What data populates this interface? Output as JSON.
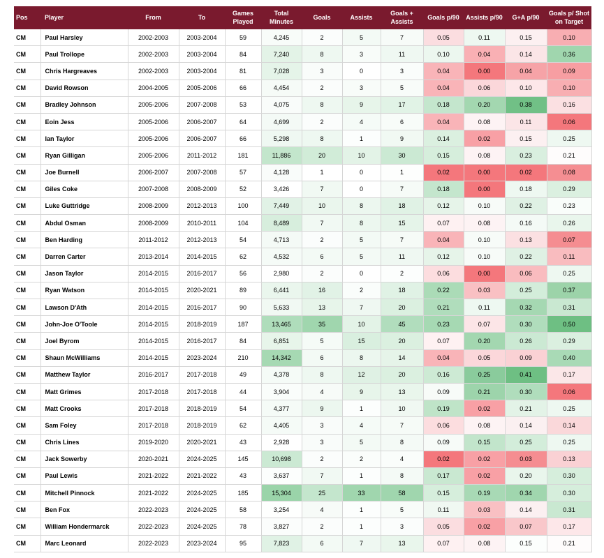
{
  "table": {
    "headers": [
      "Pos",
      "Player",
      "From",
      "To",
      "Games Played",
      "Total Minutes",
      "Goals",
      "Assists",
      "Goals + Assists",
      "Goals p/90",
      "Assists p/90",
      "G+A p/90",
      "Goals p/ Shot on Target"
    ],
    "rows": [
      [
        "CM",
        "Paul Harsley",
        "2002-2003",
        "2003-2004",
        "59",
        "4,245",
        "2",
        "5",
        "7",
        "0.05",
        "0.11",
        "0.15",
        "0.10"
      ],
      [
        "CM",
        "Paul Trollope",
        "2002-2003",
        "2003-2004",
        "84",
        "7,240",
        "8",
        "3",
        "11",
        "0.10",
        "0.04",
        "0.14",
        "0.36"
      ],
      [
        "CM",
        "Chris Hargreaves",
        "2002-2003",
        "2003-2004",
        "81",
        "7,028",
        "3",
        "0",
        "3",
        "0.04",
        "0.00",
        "0.04",
        "0.09"
      ],
      [
        "CM",
        "David Rowson",
        "2004-2005",
        "2005-2006",
        "66",
        "4,454",
        "2",
        "3",
        "5",
        "0.04",
        "0.06",
        "0.10",
        "0.10"
      ],
      [
        "CM",
        "Bradley Johnson",
        "2005-2006",
        "2007-2008",
        "53",
        "4,075",
        "8",
        "9",
        "17",
        "0.18",
        "0.20",
        "0.38",
        "0.16"
      ],
      [
        "CM",
        "Eoin Jess",
        "2005-2006",
        "2006-2007",
        "64",
        "4,699",
        "2",
        "4",
        "6",
        "0.04",
        "0.08",
        "0.11",
        "0.06"
      ],
      [
        "CM",
        "Ian Taylor",
        "2005-2006",
        "2006-2007",
        "66",
        "5,298",
        "8",
        "1",
        "9",
        "0.14",
        "0.02",
        "0.15",
        "0.25"
      ],
      [
        "CM",
        "Ryan Gilligan",
        "2005-2006",
        "2011-2012",
        "181",
        "11,886",
        "20",
        "10",
        "30",
        "0.15",
        "0.08",
        "0.23",
        "0.21"
      ],
      [
        "CM",
        "Joe Burnell",
        "2006-2007",
        "2007-2008",
        "57",
        "4,128",
        "1",
        "0",
        "1",
        "0.02",
        "0.00",
        "0.02",
        "0.08"
      ],
      [
        "CM",
        "Giles Coke",
        "2007-2008",
        "2008-2009",
        "52",
        "3,426",
        "7",
        "0",
        "7",
        "0.18",
        "0.00",
        "0.18",
        "0.29"
      ],
      [
        "CM",
        "Luke Guttridge",
        "2008-2009",
        "2012-2013",
        "100",
        "7,449",
        "10",
        "8",
        "18",
        "0.12",
        "0.10",
        "0.22",
        "0.23"
      ],
      [
        "CM",
        "Abdul Osman",
        "2008-2009",
        "2010-2011",
        "104",
        "8,489",
        "7",
        "8",
        "15",
        "0.07",
        "0.08",
        "0.16",
        "0.26"
      ],
      [
        "CM",
        "Ben Harding",
        "2011-2012",
        "2012-2013",
        "54",
        "4,713",
        "2",
        "5",
        "7",
        "0.04",
        "0.10",
        "0.13",
        "0.07"
      ],
      [
        "CM",
        "Darren Carter",
        "2013-2014",
        "2014-2015",
        "62",
        "4,532",
        "6",
        "5",
        "11",
        "0.12",
        "0.10",
        "0.22",
        "0.11"
      ],
      [
        "CM",
        "Jason Taylor",
        "2014-2015",
        "2016-2017",
        "56",
        "2,980",
        "2",
        "0",
        "2",
        "0.06",
        "0.00",
        "0.06",
        "0.25"
      ],
      [
        "CM",
        "Ryan Watson",
        "2014-2015",
        "2020-2021",
        "89",
        "6,441",
        "16",
        "2",
        "18",
        "0.22",
        "0.03",
        "0.25",
        "0.37"
      ],
      [
        "CM",
        "Lawson D'Ath",
        "2014-2015",
        "2016-2017",
        "90",
        "5,633",
        "13",
        "7",
        "20",
        "0.21",
        "0.11",
        "0.32",
        "0.31"
      ],
      [
        "CM",
        "John-Joe O'Toole",
        "2014-2015",
        "2018-2019",
        "187",
        "13,465",
        "35",
        "10",
        "45",
        "0.23",
        "0.07",
        "0.30",
        "0.50"
      ],
      [
        "CM",
        "Joel Byrom",
        "2014-2015",
        "2016-2017",
        "84",
        "6,851",
        "5",
        "15",
        "20",
        "0.07",
        "0.20",
        "0.26",
        "0.29"
      ],
      [
        "CM",
        "Shaun McWilliams",
        "2014-2015",
        "2023-2024",
        "210",
        "14,342",
        "6",
        "8",
        "14",
        "0.04",
        "0.05",
        "0.09",
        "0.40"
      ],
      [
        "CM",
        "Matthew Taylor",
        "2016-2017",
        "2017-2018",
        "49",
        "4,378",
        "8",
        "12",
        "20",
        "0.16",
        "0.25",
        "0.41",
        "0.17"
      ],
      [
        "CM",
        "Matt Grimes",
        "2017-2018",
        "2017-2018",
        "44",
        "3,904",
        "4",
        "9",
        "13",
        "0.09",
        "0.21",
        "0.30",
        "0.06"
      ],
      [
        "CM",
        "Matt Crooks",
        "2017-2018",
        "2018-2019",
        "54",
        "4,377",
        "9",
        "1",
        "10",
        "0.19",
        "0.02",
        "0.21",
        "0.25"
      ],
      [
        "CM",
        "Sam Foley",
        "2017-2018",
        "2018-2019",
        "62",
        "4,405",
        "3",
        "4",
        "7",
        "0.06",
        "0.08",
        "0.14",
        "0.14"
      ],
      [
        "CM",
        "Chris Lines",
        "2019-2020",
        "2020-2021",
        "43",
        "2,928",
        "3",
        "5",
        "8",
        "0.09",
        "0.15",
        "0.25",
        "0.25"
      ],
      [
        "CM",
        "Jack Sowerby",
        "2020-2021",
        "2024-2025",
        "145",
        "10,698",
        "2",
        "2",
        "4",
        "0.02",
        "0.02",
        "0.03",
        "0.13"
      ],
      [
        "CM",
        "Paul Lewis",
        "2021-2022",
        "2021-2022",
        "43",
        "3,637",
        "7",
        "1",
        "8",
        "0.17",
        "0.02",
        "0.20",
        "0.30"
      ],
      [
        "CM",
        "Mitchell Pinnock",
        "2021-2022",
        "2024-2025",
        "185",
        "15,304",
        "25",
        "33",
        "58",
        "0.15",
        "0.19",
        "0.34",
        "0.30"
      ],
      [
        "CM",
        "Ben Fox",
        "2022-2023",
        "2024-2025",
        "58",
        "3,254",
        "4",
        "1",
        "5",
        "0.11",
        "0.03",
        "0.14",
        "0.31"
      ],
      [
        "CM",
        "William Hondermarck",
        "2022-2023",
        "2024-2025",
        "78",
        "3,827",
        "2",
        "1",
        "3",
        "0.05",
        "0.02",
        "0.07",
        "0.17"
      ],
      [
        "CM",
        "Marc Leonard",
        "2022-2023",
        "2023-2024",
        "95",
        "7,823",
        "6",
        "7",
        "13",
        "0.07",
        "0.08",
        "0.15",
        "0.21"
      ]
    ],
    "cell_colors": {
      "total_minutes": [
        "#f8fcf9",
        "#e3f3e7",
        "#e5f4e9",
        "#f6fbf7",
        "#f9fcfa",
        "#f4faf6",
        "#eff8f2",
        "#c3e6cc",
        "#f9fcfa",
        "#ffffff",
        "#e1f2e6",
        "#d7eedd",
        "#f4faf6",
        "#f5fbf7",
        "#ffffff",
        "#eaf6ed",
        "#f1f9f3",
        "#afddbb",
        "#e7f5ea",
        "#a6d9b3",
        "#f5fbf7",
        "#fafdfb",
        "#f5fbf7",
        "#f5fbf7",
        "#ffffff",
        "#cbe9d3",
        "#fcfefd",
        "#9ad4a9",
        "#fefffe",
        "#fbfdfc",
        "#e0f2e5"
      ],
      "goals": [
        "#fbfdfc",
        "#eef8f1",
        "#f9fcfa",
        "#fbfdfc",
        "#eef8f1",
        "#fbfdfc",
        "#eef8f1",
        "#d1ecd8",
        "#ffffff",
        "#f1f9f3",
        "#eaf6ed",
        "#f1f9f3",
        "#fbfdfc",
        "#f3faf5",
        "#fbfdfc",
        "#e1f2e6",
        "#e7f5ea",
        "#a0d6ae",
        "#f5fbf7",
        "#f3faf5",
        "#eef8f1",
        "#f7fbf8",
        "#ecf7ef",
        "#f9fcfa",
        "#f9fcfa",
        "#fbfdfc",
        "#f1f9f3",
        "#c4e6cd",
        "#f7fbf8",
        "#fbfdfc",
        "#f3faf5"
      ],
      "assists": [
        "#f3faf5",
        "#f8fcf9",
        "#ffffff",
        "#f8fcf9",
        "#e7f5ea",
        "#f5fbf7",
        "#fcfefd",
        "#e3f3e7",
        "#ffffff",
        "#ffffff",
        "#ecf7ef",
        "#ecf7ef",
        "#f3faf5",
        "#f3faf5",
        "#ffffff",
        "#fafdfb",
        "#eff8f2",
        "#e3f3e7",
        "#d9efdf",
        "#ecf7ef",
        "#dff1e4",
        "#e7f5ea",
        "#fcfefd",
        "#f5fbf7",
        "#f3faf5",
        "#fafdfb",
        "#fcfefd",
        "#a0d6ae",
        "#fcfefd",
        "#fcfefd",
        "#eff8f2"
      ],
      "ga": [
        "#f7fbf8",
        "#eff8f2",
        "#fafdfb",
        "#f8fcf9",
        "#e1f3e6",
        "#f8fcf9",
        "#f1f9f3",
        "#cbe9d3",
        "#fdfefd",
        "#f6fbf7",
        "#e0f2e5",
        "#e5f4e9",
        "#f6fbf7",
        "#eff8f2",
        "#fcfefd",
        "#e0f2e5",
        "#dbf0e0",
        "#b1ddbd",
        "#dbf0e0",
        "#e6f4e9",
        "#dbf0e0",
        "#e9f6ec",
        "#f0f8f2",
        "#f6fbf7",
        "#f4faf6",
        "#fafdfb",
        "#f4faf6",
        "#a0d6ae",
        "#f8fcf9",
        "#fbfdfc",
        "#e9f6ec"
      ],
      "goals_p90": [
        "#fbdde0",
        "#ecf7ef",
        "#f9b4b8",
        "#f9b4b8",
        "#c4e6cd",
        "#f9b4b8",
        "#dbf0e0",
        "#d6eedc",
        "#f4777c",
        "#c4e6cd",
        "#e6f4e9",
        "#fef1f2",
        "#f9b4b8",
        "#e6f4e9",
        "#fcdddf",
        "#abdbb7",
        "#b0ddbc",
        "#a6d9b3",
        "#fef1f2",
        "#f9b4b8",
        "#cdeaD4",
        "#f7fbf8",
        "#bfe4c8",
        "#fcdddf",
        "#f7fbf8",
        "#f4777c",
        "#c9e8d1",
        "#d6eedc",
        "#f0f8f2",
        "#fbdde0",
        "#fef1f2"
      ],
      "assists_p90": [
        "#eef8f1",
        "#f9b0b4",
        "#f4777c",
        "#fbd7da",
        "#a3d7b0",
        "#fdf3f4",
        "#f8a0a5",
        "#fdf3f4",
        "#f4777c",
        "#f4777c",
        "#f7fbf8",
        "#fdf3f4",
        "#f7fbf8",
        "#f7fbf8",
        "#f4777c",
        "#f9c0c3",
        "#eef8f1",
        "#fce5e7",
        "#a3d7b0",
        "#fbd7da",
        "#8acb9c",
        "#9dd4ab",
        "#f8a0a5",
        "#fdf3f4",
        "#c2e5cb",
        "#f8a0a5",
        "#f8a0a5",
        "#a8d9b5",
        "#f9c0c3",
        "#f8a0a5",
        "#fdf3f4"
      ],
      "ga_p90": [
        "#fcf0f1",
        "#fbe5e7",
        "#f6a3a7",
        "#fde7e9",
        "#71c086",
        "#fbe5e7",
        "#fcf0f1",
        "#d9efdf",
        "#f4777c",
        "#eef8f1",
        "#dff1e4",
        "#f4faf6",
        "#fbe0e2",
        "#dff1e4",
        "#f9bcbf",
        "#d3edda",
        "#a5d8b2",
        "#b0ddbc",
        "#cbe9d3",
        "#fad1d4",
        "#6ebf83",
        "#b0ddbc",
        "#e3f3e7",
        "#fbf0f1",
        "#d3edda",
        "#f58d91",
        "#e9f6ec",
        "#a0d6ae",
        "#fbf0f1",
        "#f9c7ca",
        "#fcfefd"
      ],
      "goals_sot": [
        "#f8aeb2",
        "#a0d6ae",
        "#f79ea2",
        "#f8aeb2",
        "#fbe0e2",
        "#f4777c",
        "#eef8f1",
        "#fefcfc",
        "#f58e92",
        "#dbf0e0",
        "#f9fdfa",
        "#e9f6ec",
        "#f58d91",
        "#f9bcbf",
        "#eef8f1",
        "#9cd3a9",
        "#c9e8d1",
        "#6ebf83",
        "#dbf0e0",
        "#a9dab6",
        "#fbe7e8",
        "#f4777c",
        "#eef8f1",
        "#fad8da",
        "#eef8f1",
        "#fad1d4",
        "#d6eedc",
        "#d6eedc",
        "#c9e8d1",
        "#fde7e9",
        "#fefcfc"
      ]
    }
  }
}
